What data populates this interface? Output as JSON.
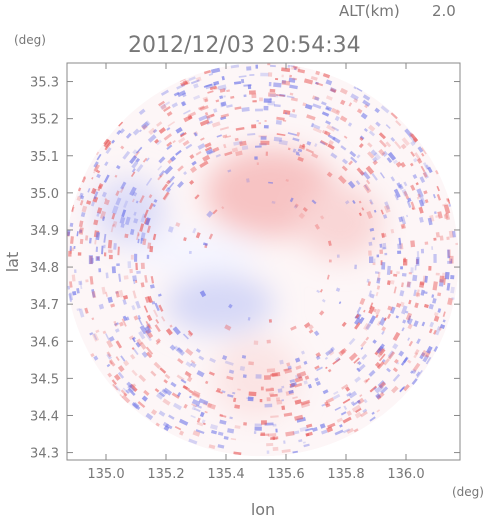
{
  "header": {
    "altitude_label": "ALT(km)",
    "altitude_value": "2.0",
    "timestamp": "2012/12/03 20:54:34"
  },
  "chart_data": {
    "type": "heatmap",
    "title": "",
    "xlabel": "lon",
    "ylabel": "lat",
    "x_unit": "(deg)",
    "y_unit": "(deg)",
    "xlim": [
      134.87,
      136.18
    ],
    "ylim": [
      34.28,
      35.35
    ],
    "x_ticks": [
      "135.0",
      "135.2",
      "135.4",
      "135.6",
      "135.8",
      "136.0"
    ],
    "x_tick_values": [
      135.0,
      135.2,
      135.4,
      135.6,
      135.8,
      136.0
    ],
    "y_ticks": [
      "35.3",
      "35.2",
      "35.1",
      "35.0",
      "34.9",
      "34.8",
      "34.7",
      "34.6",
      "34.5",
      "34.4",
      "34.3"
    ],
    "y_tick_values": [
      35.3,
      35.2,
      35.1,
      35.0,
      34.9,
      34.8,
      34.7,
      34.6,
      34.5,
      34.4,
      34.3
    ],
    "grid": false,
    "legend": "none",
    "radar_center": {
      "lon": 135.52,
      "lat": 34.82
    },
    "radar_radius_lat_deg": 0.53,
    "colors": {
      "positive": "#e85a5a",
      "negative": "#6d74e8",
      "neutral": "#ffffff",
      "frame": "#888888",
      "text": "#777777"
    },
    "regions": [
      {
        "name": "north-positive",
        "lon": 135.55,
        "lat": 35.0,
        "rlon": 0.22,
        "rlat": 0.12,
        "color": "#f7c3c3"
      },
      {
        "name": "east-positive",
        "lon": 135.78,
        "lat": 34.92,
        "rlon": 0.14,
        "rlat": 0.1,
        "color": "#f9d6d6"
      },
      {
        "name": "west-negative",
        "lon": 135.08,
        "lat": 34.95,
        "rlon": 0.12,
        "rlat": 0.09,
        "color": "#dcdcf8"
      },
      {
        "name": "southwest-negative",
        "lon": 135.38,
        "lat": 34.7,
        "rlon": 0.18,
        "rlat": 0.08,
        "color": "#d6d8f7"
      },
      {
        "name": "south-positive",
        "lon": 135.5,
        "lat": 34.5,
        "rlon": 0.14,
        "rlat": 0.11,
        "color": "#fbe4e4"
      },
      {
        "name": "center-white",
        "lon": 135.3,
        "lat": 34.84,
        "rlon": 0.22,
        "rlat": 0.06,
        "color": "#f5f5ff"
      }
    ]
  }
}
